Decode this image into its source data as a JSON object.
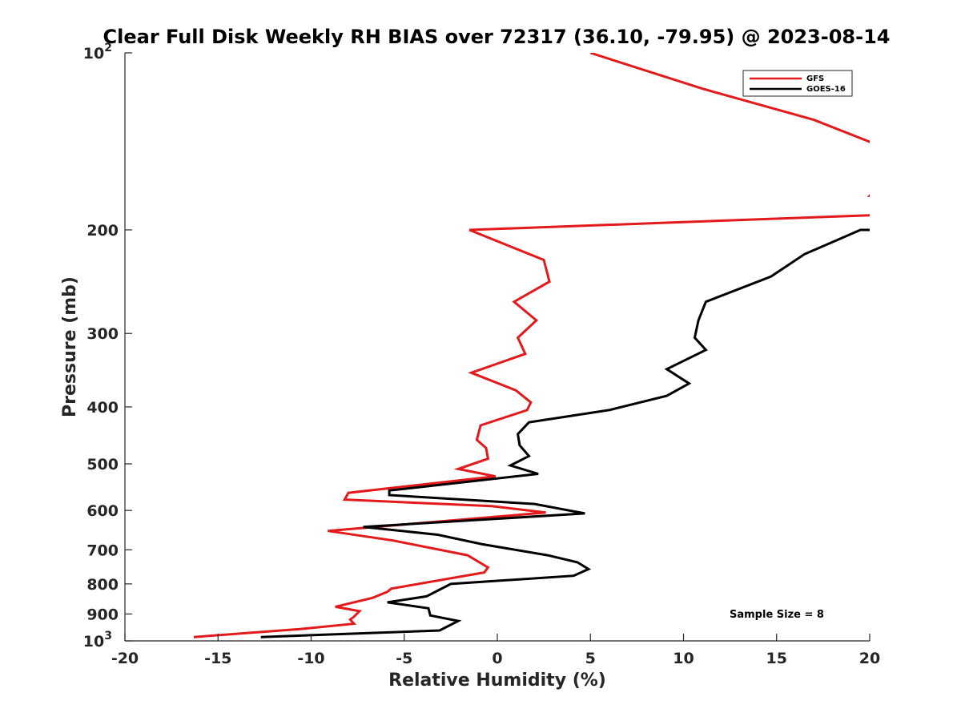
{
  "chart_data": {
    "type": "line",
    "title": "Clear Full Disk Weekly RH BIAS over 72317 (36.10, -79.95) @ 2023-08-14",
    "xlabel": "Relative Humidity (%)",
    "ylabel": "Pressure (mb)",
    "xlim": [
      -20,
      20
    ],
    "ylim": [
      100,
      1000
    ],
    "y_scale": "log",
    "y_reversed": true,
    "grid": false,
    "legend_position": "top-right",
    "x_ticks": [
      {
        "value": -20,
        "label": "-20"
      },
      {
        "value": -15,
        "label": "-15"
      },
      {
        "value": -10,
        "label": "-10"
      },
      {
        "value": -5,
        "label": "-5"
      },
      {
        "value": 0,
        "label": "0"
      },
      {
        "value": 5,
        "label": "5"
      },
      {
        "value": 10,
        "label": "10"
      },
      {
        "value": 15,
        "label": "15"
      },
      {
        "value": 20,
        "label": "20"
      }
    ],
    "y_ticks": [
      {
        "value": 100,
        "base": "10",
        "exp": "2"
      },
      {
        "value": 200,
        "label": "200"
      },
      {
        "value": 300,
        "label": "300"
      },
      {
        "value": 400,
        "label": "400"
      },
      {
        "value": 500,
        "label": "500"
      },
      {
        "value": 600,
        "label": "600"
      },
      {
        "value": 700,
        "label": "700"
      },
      {
        "value": 800,
        "label": "800"
      },
      {
        "value": 900,
        "label": "900"
      },
      {
        "value": 1000,
        "base": "10",
        "exp": "3"
      }
    ],
    "series": [
      {
        "name": "GFS",
        "color": "#e31a1c",
        "points": [
          [
            5,
            100
          ],
          [
            11,
            115
          ],
          [
            17,
            130
          ],
          [
            22,
            150
          ],
          [
            20,
            175
          ],
          [
            38,
            180
          ],
          [
            -1.5,
            200
          ],
          [
            2.5,
            225
          ],
          [
            2.8,
            245
          ],
          [
            0.9,
            265
          ],
          [
            2.1,
            285
          ],
          [
            1.1,
            305
          ],
          [
            1.5,
            325
          ],
          [
            -1.4,
            350
          ],
          [
            1.0,
            375
          ],
          [
            1.8,
            393
          ],
          [
            1.6,
            405
          ],
          [
            -0.9,
            430
          ],
          [
            -1.1,
            455
          ],
          [
            -0.6,
            470
          ],
          [
            -0.5,
            490
          ],
          [
            -2.1,
            510
          ],
          [
            -0.1,
            525
          ],
          [
            -8.0,
            560
          ],
          [
            -8.2,
            575
          ],
          [
            -0.3,
            590
          ],
          [
            2.6,
            605
          ],
          [
            -9.1,
            650
          ],
          [
            -5.6,
            675
          ],
          [
            -1.6,
            715
          ],
          [
            -0.5,
            750
          ],
          [
            -0.7,
            765
          ],
          [
            -5.7,
            815
          ],
          [
            -5.9,
            825
          ],
          [
            -6.7,
            845
          ],
          [
            -8.7,
            875
          ],
          [
            -7.4,
            890
          ],
          [
            -7.7,
            910
          ],
          [
            -7.9,
            920
          ],
          [
            -7.7,
            935
          ],
          [
            -10.6,
            955
          ],
          [
            -16.3,
            985
          ]
        ]
      },
      {
        "name": "GOES-16",
        "color": "#000000",
        "points": [
          [
            20,
            98
          ],
          [
            21.5,
            105
          ],
          [
            38,
            200
          ],
          [
            19.5,
            200
          ],
          [
            16.5,
            220
          ],
          [
            14.7,
            240
          ],
          [
            11.2,
            265
          ],
          [
            10.8,
            285
          ],
          [
            10.6,
            305
          ],
          [
            11.2,
            320
          ],
          [
            9.1,
            345
          ],
          [
            10.3,
            365
          ],
          [
            9.1,
            383
          ],
          [
            6.0,
            405
          ],
          [
            1.7,
            425
          ],
          [
            1.1,
            445
          ],
          [
            1.2,
            465
          ],
          [
            1.7,
            485
          ],
          [
            0.7,
            503
          ],
          [
            2.2,
            520
          ],
          [
            -5.8,
            555
          ],
          [
            -5.8,
            565
          ],
          [
            2.0,
            585
          ],
          [
            4.7,
            607
          ],
          [
            -7.2,
            640
          ],
          [
            -3.2,
            660
          ],
          [
            -0.8,
            685
          ],
          [
            2.7,
            715
          ],
          [
            4.3,
            735
          ],
          [
            4.9,
            755
          ],
          [
            4.1,
            775
          ],
          [
            -2.5,
            800
          ],
          [
            -3.8,
            840
          ],
          [
            -5.9,
            860
          ],
          [
            -3.7,
            880
          ],
          [
            -3.6,
            905
          ],
          [
            -2.1,
            925
          ],
          [
            -3.1,
            960
          ],
          [
            -12.7,
            985
          ]
        ]
      }
    ],
    "legend": [
      {
        "label": "GFS",
        "color": "#e31a1c"
      },
      {
        "label": "GOES-16",
        "color": "#000000"
      }
    ],
    "annotation": "Sample Size = 8"
  }
}
